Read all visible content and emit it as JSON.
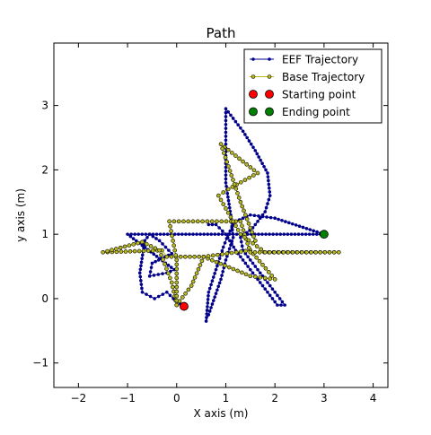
{
  "chart_data": {
    "type": "line",
    "title": "Path",
    "xlabel": "X axis (m)",
    "ylabel": "y axis (m)",
    "xlim": [
      -2.5,
      4.3
    ],
    "ylim": [
      -1.38,
      3.97
    ],
    "xticks": [
      -2,
      -1,
      0,
      1,
      2,
      3,
      4
    ],
    "xtick_labels": [
      "−2",
      "−1",
      "0",
      "1",
      "2",
      "3",
      "4"
    ],
    "yticks": [
      -1,
      0,
      1,
      2,
      3
    ],
    "ytick_labels": [
      "−1",
      "0",
      "1",
      "2",
      "3"
    ],
    "grid": false,
    "legend_position": "top-right",
    "series": [
      {
        "name": "EEF Trajectory",
        "color": "#00008b",
        "marker": "dot",
        "points": [
          [
            0.15,
            -0.12
          ],
          [
            0.0,
            -0.05
          ],
          [
            -0.2,
            0.1
          ],
          [
            -0.45,
            0.0
          ],
          [
            -0.7,
            0.1
          ],
          [
            -0.75,
            0.4
          ],
          [
            -0.65,
            0.9
          ],
          [
            -0.55,
            1.0
          ],
          [
            -0.35,
            0.9
          ],
          [
            -0.1,
            0.7
          ],
          [
            -0.5,
            0.55
          ],
          [
            -0.55,
            0.35
          ],
          [
            -0.2,
            0.4
          ],
          [
            -0.05,
            0.45
          ],
          [
            -1.0,
            1.0
          ],
          [
            3.0,
            1.0
          ],
          [
            2.0,
            1.25
          ],
          [
            1.5,
            1.3
          ],
          [
            1.2,
            1.2
          ],
          [
            1.05,
            1.0
          ],
          [
            0.95,
            0.8
          ],
          [
            0.8,
            0.45
          ],
          [
            0.65,
            0.1
          ],
          [
            0.6,
            -0.35
          ],
          [
            0.65,
            -0.25
          ],
          [
            0.9,
            0.3
          ],
          [
            1.0,
            0.6
          ],
          [
            1.15,
            0.95
          ],
          [
            1.1,
            1.3
          ],
          [
            1.0,
            1.8
          ],
          [
            1.0,
            2.4
          ],
          [
            1.0,
            2.95
          ],
          [
            1.1,
            2.85
          ],
          [
            1.35,
            2.6
          ],
          [
            1.6,
            2.3
          ],
          [
            1.85,
            1.95
          ],
          [
            1.9,
            1.6
          ],
          [
            1.8,
            1.35
          ],
          [
            1.55,
            1.1
          ],
          [
            1.3,
            0.95
          ],
          [
            1.35,
            0.75
          ],
          [
            1.6,
            0.5
          ],
          [
            1.85,
            0.25
          ],
          [
            2.2,
            -0.1
          ],
          [
            2.05,
            -0.1
          ],
          [
            1.8,
            0.15
          ],
          [
            1.5,
            0.45
          ],
          [
            1.2,
            0.75
          ],
          [
            1.0,
            1.0
          ],
          [
            0.8,
            1.15
          ],
          [
            0.65,
            1.15
          ]
        ]
      },
      {
        "name": "Base Trajectory",
        "color": "#b8b820",
        "marker": "ring",
        "points": [
          [
            0.0,
            -0.1
          ],
          [
            0.3,
            0.2
          ],
          [
            0.55,
            0.65
          ],
          [
            1.5,
            0.35
          ],
          [
            2.0,
            0.3
          ],
          [
            1.5,
            0.75
          ],
          [
            0.55,
            0.65
          ],
          [
            -0.2,
            0.65
          ],
          [
            -0.3,
            0.75
          ],
          [
            -1.5,
            0.72
          ],
          [
            -0.7,
            0.88
          ],
          [
            -0.35,
            0.75
          ],
          [
            -0.1,
            0.25
          ],
          [
            0.0,
            -0.1
          ],
          [
            0.0,
            0.6
          ],
          [
            -0.15,
            1.2
          ],
          [
            1.3,
            1.2
          ],
          [
            1.5,
            0.72
          ],
          [
            3.3,
            0.72
          ],
          [
            1.8,
            0.72
          ],
          [
            1.3,
            1.0
          ],
          [
            0.85,
            1.6
          ],
          [
            1.05,
            1.7
          ],
          [
            1.65,
            1.95
          ],
          [
            0.9,
            2.4
          ],
          [
            1.3,
            1.5
          ],
          [
            1.6,
            0.9
          ]
        ]
      },
      {
        "name": "Starting point",
        "color": "#ff0000",
        "marker": "big-dot",
        "points": [
          [
            0.15,
            -0.12
          ]
        ]
      },
      {
        "name": "Ending point",
        "color": "#008000",
        "marker": "big-dot",
        "points": [
          [
            3.0,
            1.0
          ]
        ]
      }
    ]
  }
}
